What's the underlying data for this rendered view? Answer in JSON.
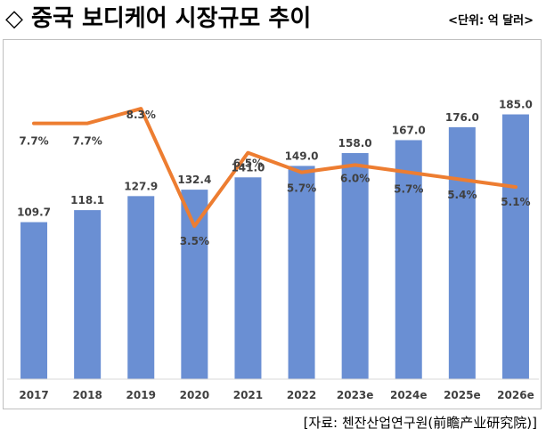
{
  "header": {
    "title": "◇ 중국 보디케어 시장규모 추이",
    "unit": "<단위: 억 달러>"
  },
  "source": "[자료: 첸잔산업연구원(前瞻产业研究院)]",
  "colors": {
    "bar": "#6a8fd3",
    "line": "#ed7d31",
    "label": "#404040",
    "axis": "#d9d9d9"
  },
  "chart_data": {
    "type": "bar",
    "categories": [
      "2017",
      "2018",
      "2019",
      "2020",
      "2021",
      "2022",
      "2023e",
      "2024e",
      "2025e",
      "2026e"
    ],
    "series": [
      {
        "type": "bar",
        "values": [
          109.7,
          118.1,
          127.9,
          132.4,
          141.0,
          149.0,
          158.0,
          167.0,
          176.0,
          185.0
        ],
        "labels": [
          "109.7",
          "118.1",
          "127.9",
          "132.4",
          "141.0",
          "149.0",
          "158.0",
          "167.0",
          "176.0",
          "185.0"
        ]
      },
      {
        "type": "line",
        "values": [
          7.7,
          7.7,
          8.3,
          3.5,
          6.5,
          5.7,
          6.0,
          5.7,
          5.4,
          5.1
        ],
        "labels": [
          "7.7%",
          "7.7%",
          "8.3%",
          "3.5%",
          "6.5%",
          "5.7%",
          "6.0%",
          "5.7%",
          "5.4%",
          "5.1%"
        ]
      }
    ],
    "ylim_bar": [
      0,
      200
    ],
    "ylim_line": [
      0,
      10
    ],
    "grid": false,
    "legend": "none"
  }
}
